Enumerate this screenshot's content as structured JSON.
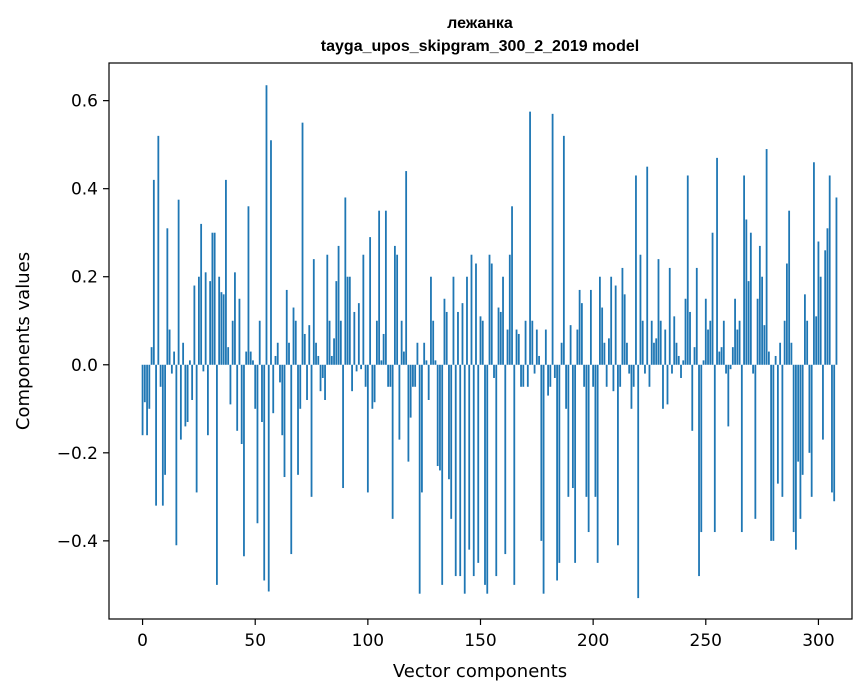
{
  "chart_data": {
    "type": "bar",
    "title": "лежанка",
    "subtitle": "tayga_upos_skipgram_300_2_2019 model",
    "xlabel": "Vector components",
    "ylabel": "Components values",
    "xlim": [
      -14.9,
      314.9
    ],
    "ylim": [
      -0.5775,
      0.6855
    ],
    "xticks": [
      0,
      50,
      100,
      150,
      200,
      250,
      300
    ],
    "xtick_labels": [
      "0",
      "50",
      "100",
      "150",
      "200",
      "250",
      "300"
    ],
    "yticks": [
      -0.4,
      -0.2,
      0.0,
      0.2,
      0.4,
      0.6
    ],
    "ytick_labels": [
      "−0.4",
      "−0.2",
      "0.0",
      "0.2",
      "0.4",
      "0.6"
    ],
    "grid": false,
    "legend": "none",
    "bar_color": "#1f77b4",
    "values": [
      -0.16,
      -0.085,
      -0.16,
      -0.1,
      0.04,
      0.42,
      -0.32,
      0.52,
      -0.05,
      -0.32,
      -0.25,
      0.31,
      0.08,
      -0.02,
      0.03,
      -0.41,
      0.375,
      -0.17,
      0.05,
      -0.14,
      -0.13,
      0.01,
      -0.08,
      0.18,
      -0.29,
      0.2,
      0.32,
      -0.015,
      0.21,
      -0.16,
      0.19,
      0.3,
      0.3,
      -0.5,
      0.2,
      0.165,
      0.16,
      0.42,
      0.04,
      -0.09,
      0.1,
      0.21,
      -0.15,
      0.15,
      -0.18,
      -0.435,
      0.03,
      0.36,
      0.03,
      0.01,
      -0.1,
      -0.36,
      0.1,
      -0.13,
      -0.49,
      0.635,
      -0.515,
      0.51,
      -0.11,
      0.02,
      0.05,
      -0.04,
      -0.16,
      -0.255,
      0.17,
      0.05,
      -0.43,
      0.13,
      0.1,
      -0.25,
      -0.1,
      0.55,
      0.07,
      -0.08,
      0.09,
      -0.3,
      0.24,
      0.05,
      0.02,
      -0.06,
      -0.03,
      -0.08,
      0.25,
      0.1,
      0.02,
      0.06,
      0.19,
      0.27,
      0.1,
      -0.28,
      0.38,
      0.2,
      0.2,
      -0.06,
      0.12,
      -0.015,
      0.14,
      -0.01,
      0.25,
      -0.05,
      -0.29,
      0.29,
      -0.1,
      -0.085,
      0.1,
      0.35,
      0.01,
      0.07,
      0.35,
      -0.05,
      -0.05,
      -0.35,
      0.27,
      0.25,
      -0.17,
      0.1,
      0.03,
      0.44,
      -0.22,
      -0.12,
      -0.05,
      -0.05,
      0.05,
      -0.52,
      -0.29,
      0.05,
      0.01,
      -0.08,
      0.2,
      0.1,
      0.01,
      -0.23,
      -0.24,
      -0.5,
      0.15,
      0.12,
      -0.26,
      -0.35,
      0.2,
      -0.48,
      0.12,
      -0.48,
      0.14,
      -0.52,
      0.2,
      -0.42,
      0.25,
      -0.48,
      0.23,
      -0.45,
      0.11,
      0.1,
      -0.5,
      -0.52,
      0.25,
      0.23,
      -0.03,
      -0.48,
      0.13,
      0.12,
      0.2,
      -0.43,
      0.08,
      0.25,
      0.36,
      -0.5,
      0.08,
      0.07,
      -0.05,
      -0.05,
      0.1,
      -0.05,
      0.575,
      0.1,
      -0.02,
      0.08,
      0.02,
      -0.4,
      -0.52,
      0.08,
      -0.07,
      -0.05,
      0.57,
      -0.03,
      -0.49,
      -0.45,
      0.05,
      0.52,
      -0.1,
      -0.3,
      0.09,
      -0.28,
      -0.45,
      0.08,
      0.17,
      0.14,
      -0.05,
      -0.3,
      -0.38,
      0.17,
      -0.05,
      -0.3,
      -0.45,
      0.2,
      0.13,
      0.05,
      -0.05,
      0.06,
      0.2,
      -0.06,
      0.18,
      -0.41,
      -0.05,
      0.22,
      0.16,
      0.05,
      -0.02,
      -0.1,
      -0.05,
      0.43,
      -0.53,
      0.25,
      0.1,
      -0.02,
      0.45,
      -0.05,
      0.1,
      0.05,
      0.06,
      0.24,
      0.1,
      -0.1,
      0.08,
      -0.09,
      0.22,
      -0.02,
      0.11,
      0.05,
      0.02,
      -0.03,
      0.01,
      0.15,
      0.43,
      0.12,
      -0.15,
      0.04,
      0.22,
      -0.48,
      -0.38,
      0.01,
      0.15,
      0.08,
      0.1,
      0.3,
      -0.38,
      0.47,
      0.03,
      0.04,
      0.1,
      -0.02,
      -0.14,
      -0.01,
      0.04,
      0.15,
      0.08,
      0.1,
      -0.38,
      0.43,
      0.33,
      0.19,
      0.3,
      -0.02,
      -0.35,
      0.15,
      0.27,
      0.2,
      0.09,
      0.49,
      0.03,
      -0.4,
      -0.4,
      0.02,
      -0.27,
      0.05,
      -0.3,
      0.1,
      0.23,
      0.35,
      0.05,
      -0.38,
      -0.42,
      -0.22,
      -0.35,
      -0.25,
      0.16,
      0.1,
      -0.2,
      -0.3,
      0.46,
      0.11,
      0.28,
      0.2,
      -0.17,
      0.26,
      0.31,
      0.43,
      -0.29,
      -0.31,
      0.38
    ]
  }
}
